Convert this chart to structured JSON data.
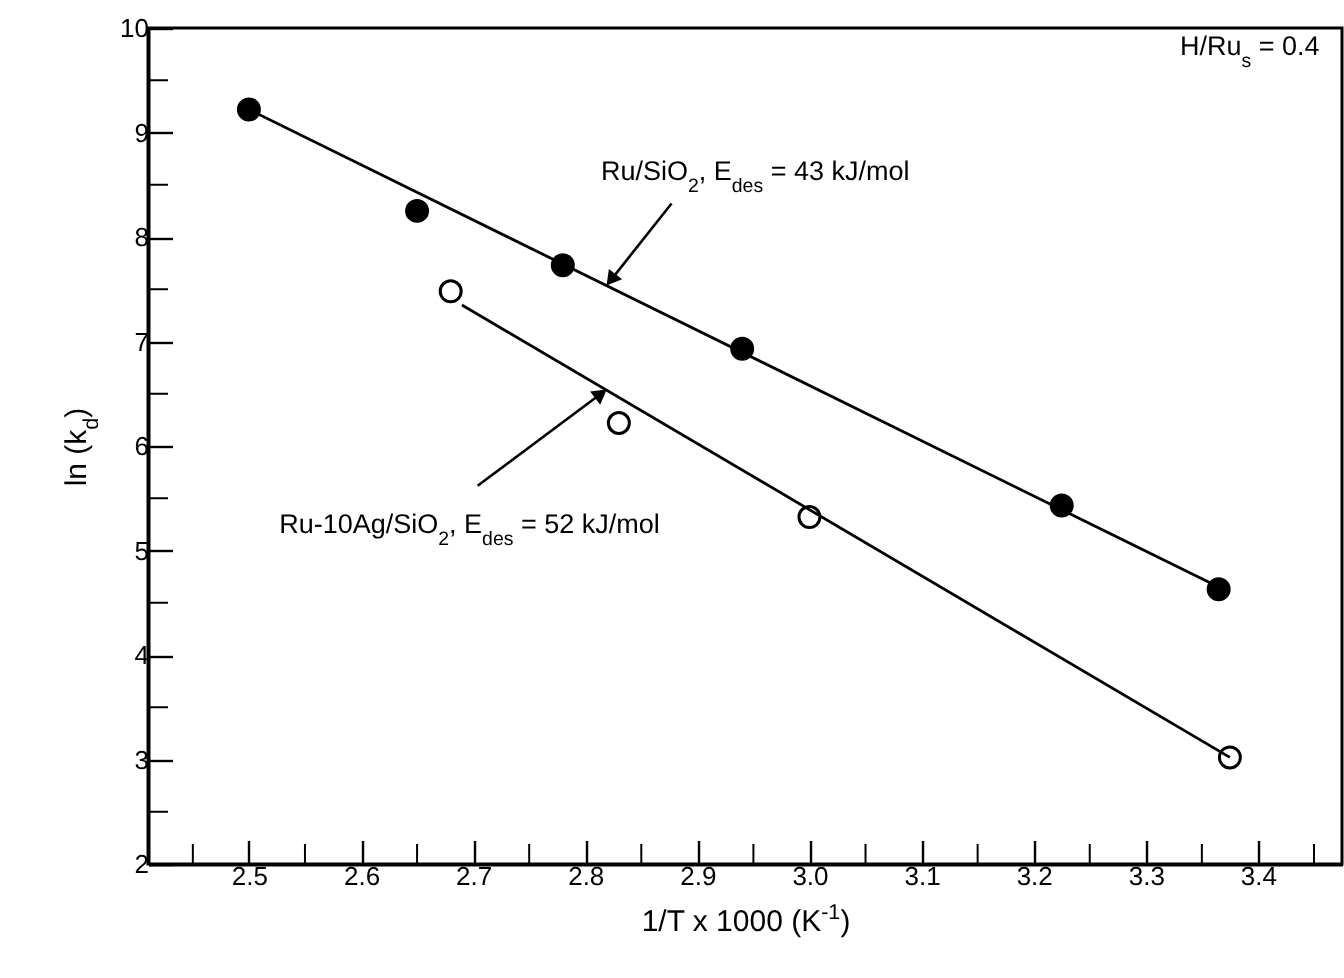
{
  "chart_data": {
    "type": "scatter",
    "xlabel": "1/T x 1000 (K$^{-1}$)",
    "ylabel": "ln (k$_{d}$)",
    "series": [
      {
        "color": "#000000",
        "x": [
          2.5,
          2.65,
          2.78,
          2.94,
          3.225,
          3.365
        ],
        "values": [
          9.22,
          8.25,
          7.73,
          6.93,
          5.43,
          4.63
        ]
      },
      {
        "color": "#ffffff",
        "x": [
          2.68,
          2.83,
          3.0,
          3.375
        ],
        "values": [
          7.48,
          6.22,
          5.32,
          3.02
        ]
      },
      {
        "type": "line",
        "marker": "none",
        "color": "#000000",
        "x": [
          2.5,
          3.365
        ],
        "values": [
          9.22,
          4.65
        ]
      },
      {
        "type": "line",
        "marker": "none",
        "color": "#000000",
        "x": [
          2.69,
          3.375
        ],
        "values": [
          7.35,
          3.02
        ]
      }
    ],
    "annotations": [
      {
        "text": "Ru/SiO$_{2}$, E$_{des}$ = 43 kJ/mol",
        "x": 2.823,
        "y": 7.59
      },
      {
        "text": "Ru-10Ag/SiO$_{2}$, E$_{des}$ = 52 kJ/mol",
        "x": 2.814,
        "y": 6.5
      },
      "H/Ru$_{s}$ = 0.4"
    ],
    "xlim": [
      2.41,
      3.475
    ],
    "ylim": [
      2,
      10
    ],
    "xticks": [
      {
        "value": 2.45,
        "label": null
      },
      2.5,
      {
        "value": 2.55,
        "label": null
      },
      2.6,
      {
        "value": 2.65,
        "label": null
      },
      2.7,
      {
        "value": 2.75,
        "label": null
      },
      2.8,
      {
        "value": 2.85,
        "label": null
      },
      2.9,
      {
        "value": 2.95,
        "label": null
      },
      {
        "value": 3,
        "label": "3.0"
      },
      {
        "value": 3.05,
        "label": null
      },
      3.1,
      {
        "value": 3.15,
        "label": null
      },
      3.2,
      {
        "value": 3.25,
        "label": null
      },
      3.3,
      {
        "value": 3.35,
        "label": null
      },
      3.4,
      {
        "value": 3.45,
        "label": null
      }
    ],
    "yticks": [
      2,
      {
        "value": 2.5,
        "label": null
      },
      3,
      {
        "value": 3.5,
        "label": null
      },
      4,
      {
        "value": 4.5,
        "label": null
      },
      5,
      {
        "value": 5.5,
        "label": null
      },
      6,
      {
        "value": 6.5,
        "label": null
      },
      7,
      {
        "value": 7.5,
        "label": null
      },
      8,
      {
        "value": 8.5,
        "label": null
      },
      9,
      {
        "value": 9.5,
        "label": null
      },
      10
    ],
    "grid": false,
    "marker": "circle",
    "line_style": "solid"
  }
}
